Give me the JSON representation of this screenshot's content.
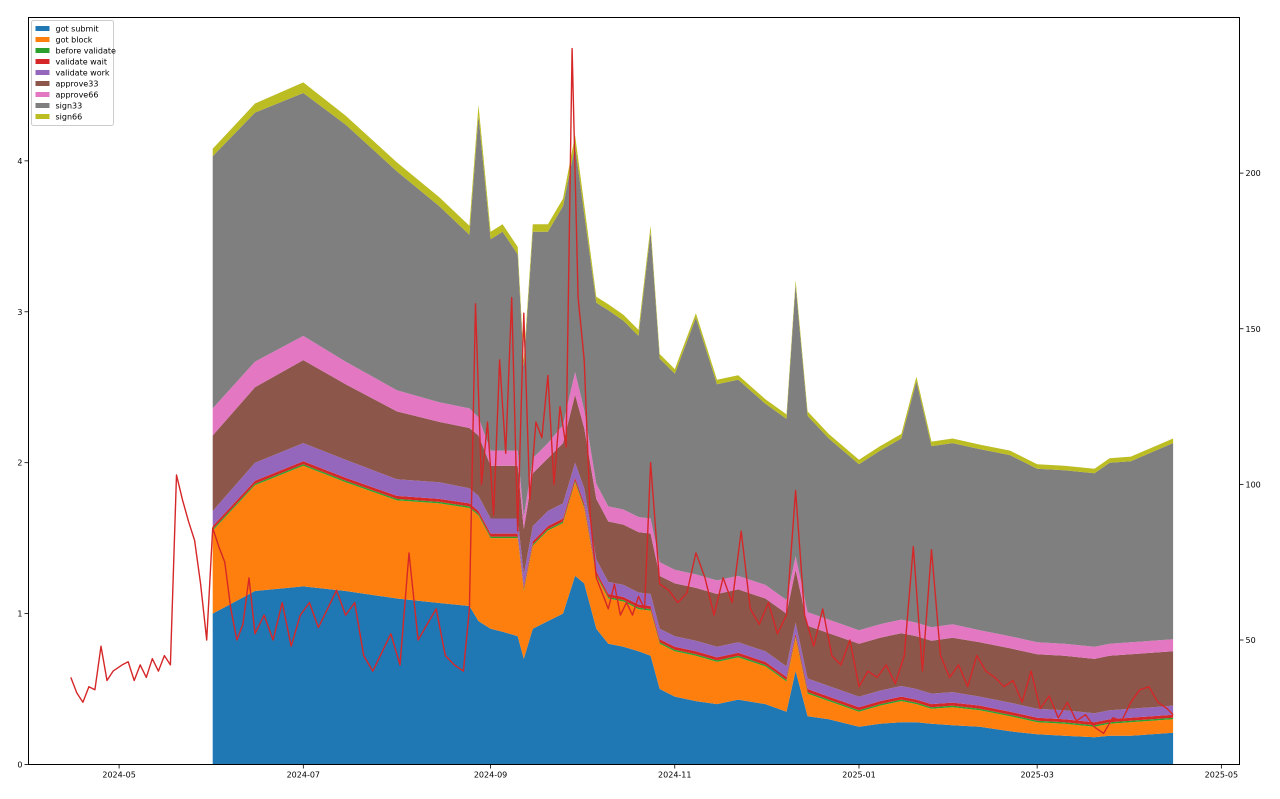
{
  "chart_data": {
    "type": "area",
    "stacked": true,
    "secondary_line": {
      "axis": "right",
      "color": "#d62728",
      "ylim": [
        10,
        250
      ],
      "yticks": [
        50,
        100,
        150,
        200
      ],
      "points": [
        [
          "2024-04-15",
          38
        ],
        [
          "2024-04-17",
          33
        ],
        [
          "2024-04-19",
          30
        ],
        [
          "2024-04-21",
          35
        ],
        [
          "2024-04-23",
          34
        ],
        [
          "2024-04-25",
          48
        ],
        [
          "2024-04-27",
          37
        ],
        [
          "2024-04-29",
          40
        ],
        [
          "2024-05-02",
          42
        ],
        [
          "2024-05-04",
          43
        ],
        [
          "2024-05-06",
          37
        ],
        [
          "2024-05-08",
          42
        ],
        [
          "2024-05-10",
          38
        ],
        [
          "2024-05-12",
          44
        ],
        [
          "2024-05-14",
          40
        ],
        [
          "2024-05-16",
          45
        ],
        [
          "2024-05-18",
          42
        ],
        [
          "2024-05-20",
          103
        ],
        [
          "2024-05-22",
          95
        ],
        [
          "2024-05-24",
          88
        ],
        [
          "2024-05-26",
          82
        ],
        [
          "2024-05-28",
          68
        ],
        [
          "2024-05-30",
          50
        ],
        [
          "2024-06-01",
          86
        ],
        [
          "2024-06-03",
          80
        ],
        [
          "2024-06-05",
          75
        ],
        [
          "2024-06-07",
          60
        ],
        [
          "2024-06-09",
          50
        ],
        [
          "2024-06-11",
          55
        ],
        [
          "2024-06-13",
          70
        ],
        [
          "2024-06-15",
          52
        ],
        [
          "2024-06-18",
          58
        ],
        [
          "2024-06-21",
          50
        ],
        [
          "2024-06-24",
          62
        ],
        [
          "2024-06-27",
          48
        ],
        [
          "2024-06-30",
          58
        ],
        [
          "2024-07-03",
          62
        ],
        [
          "2024-07-06",
          54
        ],
        [
          "2024-07-09",
          60
        ],
        [
          "2024-07-12",
          66
        ],
        [
          "2024-07-15",
          58
        ],
        [
          "2024-07-18",
          62
        ],
        [
          "2024-07-21",
          45
        ],
        [
          "2024-07-24",
          40
        ],
        [
          "2024-07-27",
          46
        ],
        [
          "2024-07-30",
          52
        ],
        [
          "2024-08-02",
          42
        ],
        [
          "2024-08-05",
          78
        ],
        [
          "2024-08-08",
          50
        ],
        [
          "2024-08-11",
          55
        ],
        [
          "2024-08-14",
          60
        ],
        [
          "2024-08-17",
          45
        ],
        [
          "2024-08-20",
          42
        ],
        [
          "2024-08-23",
          40
        ],
        [
          "2024-08-25",
          60
        ],
        [
          "2024-08-27",
          158
        ],
        [
          "2024-08-29",
          100
        ],
        [
          "2024-08-31",
          120
        ],
        [
          "2024-09-02",
          90
        ],
        [
          "2024-09-04",
          140
        ],
        [
          "2024-09-06",
          110
        ],
        [
          "2024-09-08",
          160
        ],
        [
          "2024-09-10",
          85
        ],
        [
          "2024-09-12",
          155
        ],
        [
          "2024-09-14",
          95
        ],
        [
          "2024-09-16",
          120
        ],
        [
          "2024-09-18",
          115
        ],
        [
          "2024-09-20",
          135
        ],
        [
          "2024-09-22",
          100
        ],
        [
          "2024-09-24",
          125
        ],
        [
          "2024-09-26",
          112
        ],
        [
          "2024-09-28",
          240
        ],
        [
          "2024-09-30",
          160
        ],
        [
          "2024-10-02",
          140
        ],
        [
          "2024-10-04",
          90
        ],
        [
          "2024-10-06",
          70
        ],
        [
          "2024-10-08",
          65
        ],
        [
          "2024-10-10",
          60
        ],
        [
          "2024-10-12",
          68
        ],
        [
          "2024-10-14",
          58
        ],
        [
          "2024-10-16",
          62
        ],
        [
          "2024-10-18",
          58
        ],
        [
          "2024-10-20",
          64
        ],
        [
          "2024-10-22",
          60
        ],
        [
          "2024-10-24",
          107
        ],
        [
          "2024-10-27",
          68
        ],
        [
          "2024-10-30",
          66
        ],
        [
          "2024-11-02",
          62
        ],
        [
          "2024-11-05",
          65
        ],
        [
          "2024-11-08",
          78
        ],
        [
          "2024-11-11",
          70
        ],
        [
          "2024-11-14",
          58
        ],
        [
          "2024-11-17",
          70
        ],
        [
          "2024-11-20",
          62
        ],
        [
          "2024-11-23",
          85
        ],
        [
          "2024-11-26",
          60
        ],
        [
          "2024-11-29",
          55
        ],
        [
          "2024-12-02",
          62
        ],
        [
          "2024-12-05",
          52
        ],
        [
          "2024-12-08",
          58
        ],
        [
          "2024-12-11",
          98
        ],
        [
          "2024-12-14",
          58
        ],
        [
          "2024-12-17",
          48
        ],
        [
          "2024-12-20",
          60
        ],
        [
          "2024-12-23",
          45
        ],
        [
          "2024-12-26",
          42
        ],
        [
          "2024-12-29",
          50
        ],
        [
          "2025-01-01",
          35
        ],
        [
          "2025-01-04",
          40
        ],
        [
          "2025-01-07",
          38
        ],
        [
          "2025-01-10",
          42
        ],
        [
          "2025-01-13",
          36
        ],
        [
          "2025-01-16",
          45
        ],
        [
          "2025-01-19",
          80
        ],
        [
          "2025-01-22",
          40
        ],
        [
          "2025-01-25",
          79
        ],
        [
          "2025-01-28",
          45
        ],
        [
          "2025-01-31",
          38
        ],
        [
          "2025-02-03",
          42
        ],
        [
          "2025-02-06",
          35
        ],
        [
          "2025-02-09",
          45
        ],
        [
          "2025-02-12",
          40
        ],
        [
          "2025-02-15",
          38
        ],
        [
          "2025-02-18",
          35
        ],
        [
          "2025-02-21",
          37
        ],
        [
          "2025-02-24",
          30
        ],
        [
          "2025-02-27",
          40
        ],
        [
          "2025-03-02",
          28
        ],
        [
          "2025-03-05",
          32
        ],
        [
          "2025-03-08",
          25
        ],
        [
          "2025-03-11",
          30
        ],
        [
          "2025-03-14",
          24
        ],
        [
          "2025-03-17",
          26
        ],
        [
          "2025-03-20",
          22
        ],
        [
          "2025-03-23",
          20
        ],
        [
          "2025-03-26",
          25
        ],
        [
          "2025-03-29",
          24
        ],
        [
          "2025-04-01",
          30
        ],
        [
          "2025-04-04",
          34
        ],
        [
          "2025-04-07",
          35
        ],
        [
          "2025-04-10",
          30
        ],
        [
          "2025-04-13",
          28
        ],
        [
          "2025-04-15",
          26
        ]
      ]
    },
    "x_axis": {
      "type": "date",
      "xlim": [
        "2024-04-01",
        "2025-05-07"
      ],
      "ticks": [
        {
          "date": "2024-05-01",
          "label": "2024-05"
        },
        {
          "date": "2024-07-01",
          "label": "2024-07"
        },
        {
          "date": "2024-09-01",
          "label": "2024-09"
        },
        {
          "date": "2024-11-01",
          "label": "2024-11"
        },
        {
          "date": "2025-01-01",
          "label": "2025-01"
        },
        {
          "date": "2025-03-01",
          "label": "2025-03"
        },
        {
          "date": "2025-05-01",
          "label": "2025-05"
        }
      ]
    },
    "y_axis": {
      "ylim": [
        0,
        4.95
      ],
      "ticks": [
        0,
        1,
        2,
        3,
        4
      ]
    },
    "legend": {
      "position": "top-left"
    },
    "grid": false,
    "dates": [
      "2024-06-01",
      "2024-06-15",
      "2024-07-01",
      "2024-07-15",
      "2024-08-01",
      "2024-08-15",
      "2024-08-25",
      "2024-08-28",
      "2024-09-01",
      "2024-09-05",
      "2024-09-10",
      "2024-09-12",
      "2024-09-15",
      "2024-09-20",
      "2024-09-25",
      "2024-09-29",
      "2024-10-02",
      "2024-10-06",
      "2024-10-10",
      "2024-10-15",
      "2024-10-20",
      "2024-10-24",
      "2024-10-27",
      "2024-11-01",
      "2024-11-08",
      "2024-11-15",
      "2024-11-22",
      "2024-12-01",
      "2024-12-08",
      "2024-12-11",
      "2024-12-15",
      "2024-12-22",
      "2025-01-01",
      "2025-01-08",
      "2025-01-15",
      "2025-01-20",
      "2025-01-25",
      "2025-02-01",
      "2025-02-10",
      "2025-02-20",
      "2025-03-01",
      "2025-03-10",
      "2025-03-20",
      "2025-03-25",
      "2025-04-01",
      "2025-04-08",
      "2025-04-15"
    ],
    "series": [
      {
        "name": "got submit",
        "color": "#1f77b4",
        "values": [
          1.0,
          1.15,
          1.18,
          1.15,
          1.1,
          1.07,
          1.05,
          0.95,
          0.9,
          0.88,
          0.85,
          0.7,
          0.9,
          0.95,
          1.0,
          1.25,
          1.2,
          0.9,
          0.8,
          0.78,
          0.75,
          0.72,
          0.5,
          0.45,
          0.42,
          0.4,
          0.43,
          0.4,
          0.35,
          0.62,
          0.32,
          0.3,
          0.25,
          0.27,
          0.28,
          0.28,
          0.27,
          0.26,
          0.25,
          0.22,
          0.2,
          0.19,
          0.18,
          0.19,
          0.19,
          0.2,
          0.21
        ]
      },
      {
        "name": "got block",
        "color": "#ff7f0e",
        "values": [
          0.55,
          0.7,
          0.8,
          0.72,
          0.65,
          0.66,
          0.65,
          0.7,
          0.6,
          0.62,
          0.65,
          0.45,
          0.55,
          0.6,
          0.6,
          0.62,
          0.5,
          0.35,
          0.3,
          0.3,
          0.28,
          0.3,
          0.3,
          0.3,
          0.3,
          0.28,
          0.28,
          0.25,
          0.2,
          0.22,
          0.15,
          0.12,
          0.1,
          0.12,
          0.14,
          0.12,
          0.1,
          0.12,
          0.11,
          0.1,
          0.08,
          0.08,
          0.07,
          0.08,
          0.09,
          0.09,
          0.09
        ]
      },
      {
        "name": "before validate",
        "color": "#2ca02c",
        "values": [
          0.01,
          0.01,
          0.01,
          0.01,
          0.01,
          0.01,
          0.01,
          0.01,
          0.01,
          0.01,
          0.01,
          0.01,
          0.01,
          0.01,
          0.01,
          0.01,
          0.01,
          0.01,
          0.01,
          0.01,
          0.01,
          0.01,
          0.01,
          0.01,
          0.01,
          0.01,
          0.01,
          0.01,
          0.01,
          0.01,
          0.01,
          0.01,
          0.01,
          0.01,
          0.01,
          0.01,
          0.01,
          0.01,
          0.01,
          0.01,
          0.01,
          0.01,
          0.01,
          0.01,
          0.01,
          0.01,
          0.01
        ]
      },
      {
        "name": "validate wait",
        "color": "#d62728",
        "values": [
          0.02,
          0.02,
          0.02,
          0.02,
          0.02,
          0.02,
          0.02,
          0.02,
          0.02,
          0.02,
          0.02,
          0.02,
          0.02,
          0.02,
          0.02,
          0.02,
          0.02,
          0.02,
          0.02,
          0.02,
          0.02,
          0.02,
          0.02,
          0.02,
          0.02,
          0.02,
          0.02,
          0.02,
          0.02,
          0.02,
          0.02,
          0.02,
          0.02,
          0.02,
          0.02,
          0.02,
          0.02,
          0.02,
          0.02,
          0.02,
          0.02,
          0.02,
          0.02,
          0.02,
          0.02,
          0.02,
          0.02
        ]
      },
      {
        "name": "validate work",
        "color": "#9467bd",
        "values": [
          0.1,
          0.12,
          0.12,
          0.12,
          0.11,
          0.11,
          0.1,
          0.1,
          0.1,
          0.1,
          0.1,
          0.08,
          0.1,
          0.1,
          0.1,
          0.1,
          0.1,
          0.08,
          0.08,
          0.08,
          0.08,
          0.08,
          0.07,
          0.07,
          0.07,
          0.07,
          0.07,
          0.07,
          0.07,
          0.07,
          0.07,
          0.07,
          0.07,
          0.07,
          0.07,
          0.07,
          0.07,
          0.07,
          0.06,
          0.06,
          0.06,
          0.06,
          0.06,
          0.06,
          0.06,
          0.06,
          0.06
        ]
      },
      {
        "name": "approve33",
        "color": "#8c564b",
        "values": [
          0.5,
          0.5,
          0.55,
          0.5,
          0.45,
          0.4,
          0.4,
          0.4,
          0.35,
          0.35,
          0.35,
          0.3,
          0.35,
          0.35,
          0.4,
          0.45,
          0.4,
          0.4,
          0.4,
          0.4,
          0.4,
          0.4,
          0.35,
          0.35,
          0.35,
          0.35,
          0.35,
          0.35,
          0.35,
          0.35,
          0.35,
          0.35,
          0.35,
          0.35,
          0.35,
          0.35,
          0.35,
          0.36,
          0.36,
          0.36,
          0.36,
          0.36,
          0.36,
          0.36,
          0.36,
          0.36,
          0.36
        ]
      },
      {
        "name": "approve66",
        "color": "#e377c2",
        "values": [
          0.18,
          0.17,
          0.16,
          0.15,
          0.14,
          0.13,
          0.13,
          0.12,
          0.1,
          0.1,
          0.1,
          0.08,
          0.1,
          0.1,
          0.12,
          0.15,
          0.12,
          0.1,
          0.1,
          0.1,
          0.1,
          0.1,
          0.09,
          0.09,
          0.09,
          0.09,
          0.09,
          0.09,
          0.09,
          0.09,
          0.09,
          0.09,
          0.09,
          0.09,
          0.09,
          0.09,
          0.09,
          0.09,
          0.08,
          0.08,
          0.08,
          0.08,
          0.08,
          0.08,
          0.08,
          0.08,
          0.08
        ]
      },
      {
        "name": "sign33",
        "color": "#7f7f7f",
        "values": [
          1.67,
          1.65,
          1.61,
          1.57,
          1.45,
          1.3,
          1.15,
          2.0,
          1.4,
          1.45,
          1.3,
          1.0,
          1.5,
          1.4,
          1.45,
          1.5,
          1.3,
          1.2,
          1.3,
          1.25,
          1.2,
          1.9,
          1.35,
          1.3,
          1.7,
          1.3,
          1.3,
          1.2,
          1.2,
          1.8,
          1.3,
          1.2,
          1.1,
          1.15,
          1.2,
          1.6,
          1.2,
          1.2,
          1.2,
          1.2,
          1.15,
          1.15,
          1.15,
          1.2,
          1.2,
          1.25,
          1.3
        ]
      },
      {
        "name": "sign66",
        "color": "#bcbd22",
        "values": [
          0.05,
          0.06,
          0.07,
          0.06,
          0.06,
          0.06,
          0.06,
          0.07,
          0.05,
          0.05,
          0.05,
          0.04,
          0.05,
          0.05,
          0.05,
          0.07,
          0.06,
          0.04,
          0.04,
          0.04,
          0.04,
          0.04,
          0.03,
          0.03,
          0.03,
          0.03,
          0.03,
          0.03,
          0.03,
          0.03,
          0.03,
          0.03,
          0.03,
          0.03,
          0.03,
          0.03,
          0.03,
          0.03,
          0.03,
          0.03,
          0.03,
          0.03,
          0.03,
          0.03,
          0.03,
          0.03,
          0.03
        ]
      }
    ]
  }
}
